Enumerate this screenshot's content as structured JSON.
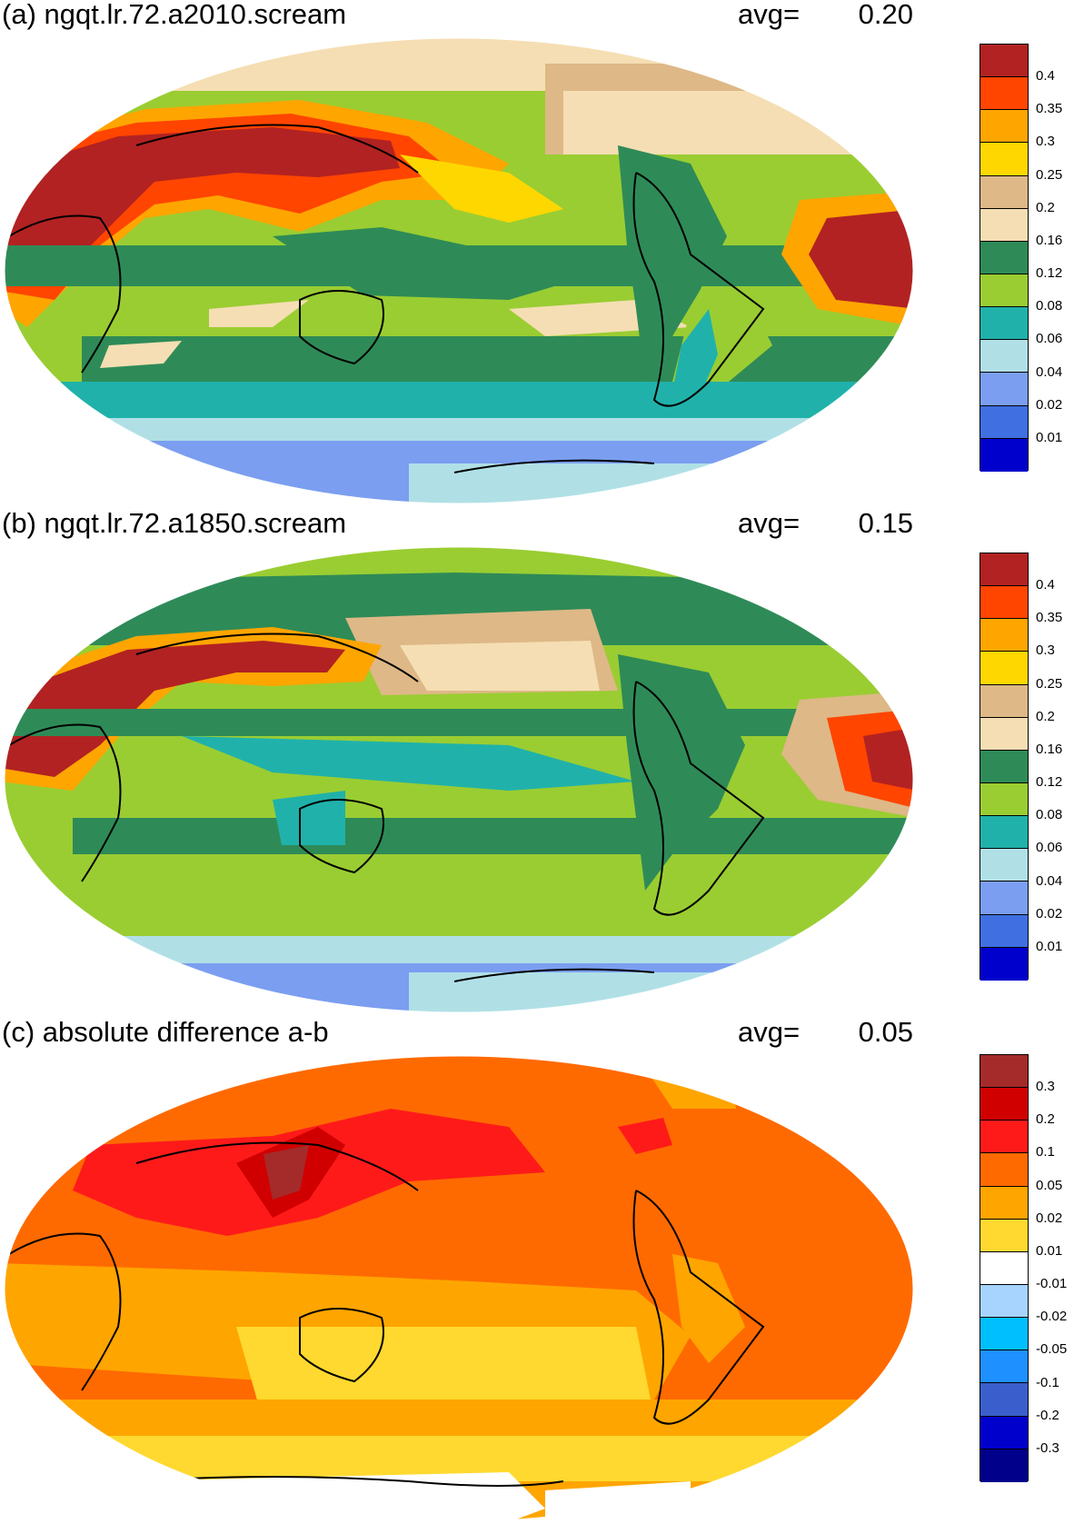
{
  "panels": [
    {
      "title": "(a) ngqt.lr.72.a2010.scream",
      "avg_label": "avg=",
      "avg_value": "0.20",
      "colorbar": {
        "colors": [
          "#b22222",
          "#ff4500",
          "#ffa500",
          "#ffd700",
          "#deb887",
          "#f5deb3",
          "#2e8b57",
          "#9acd32",
          "#20b2aa",
          "#b0e0e6",
          "#7b9ef0",
          "#3f6fe0",
          "#0000cd"
        ],
        "labels": [
          "0.4",
          "0.35",
          "0.3",
          "0.25",
          "0.2",
          "0.16",
          "0.12",
          "0.08",
          "0.06",
          "0.04",
          "0.02",
          "0.01"
        ]
      }
    },
    {
      "title": "(b) ngqt.lr.72.a1850.scream",
      "avg_label": "avg=",
      "avg_value": "0.15",
      "colorbar": {
        "colors": [
          "#b22222",
          "#ff4500",
          "#ffa500",
          "#ffd700",
          "#deb887",
          "#f5deb3",
          "#2e8b57",
          "#9acd32",
          "#20b2aa",
          "#b0e0e6",
          "#7b9ef0",
          "#3f6fe0",
          "#0000cd"
        ],
        "labels": [
          "0.4",
          "0.35",
          "0.3",
          "0.25",
          "0.2",
          "0.16",
          "0.12",
          "0.08",
          "0.06",
          "0.04",
          "0.02",
          "0.01"
        ]
      }
    },
    {
      "title": "(c) absolute difference a-b",
      "avg_label": "avg=",
      "avg_value": "0.05",
      "colorbar": {
        "colors": [
          "#a52a2a",
          "#d00000",
          "#ff1a1a",
          "#ff6a00",
          "#ffa500",
          "#ffd92f",
          "#ffffff",
          "#a6d4ff",
          "#00bfff",
          "#1e90ff",
          "#3a5fcd",
          "#0000cd",
          "#00008b"
        ],
        "labels": [
          "0.3",
          "0.2",
          "0.1",
          "0.05",
          "0.02",
          "0.01",
          "-0.01",
          "-0.02",
          "-0.05",
          "-0.1",
          "-0.2",
          "-0.3"
        ]
      }
    }
  ]
}
